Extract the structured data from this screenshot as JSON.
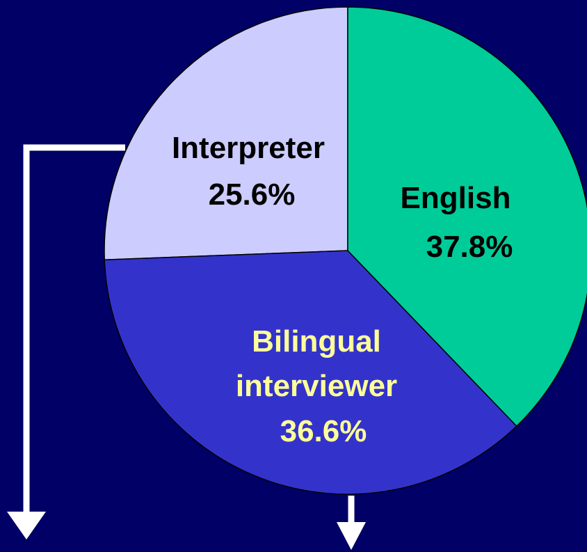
{
  "chart_data": {
    "type": "pie",
    "categories": [
      "English",
      "Bilingual interviewer",
      "Interpreter"
    ],
    "values": [
      37.8,
      36.6,
      25.6
    ],
    "value_labels": [
      "37.8%",
      "36.6%",
      "25.6%"
    ],
    "colors": [
      "#00cc99",
      "#3333cc",
      "#ccccff"
    ],
    "label_colors": [
      "#000000",
      "#ffff99",
      "#000000"
    ]
  }
}
